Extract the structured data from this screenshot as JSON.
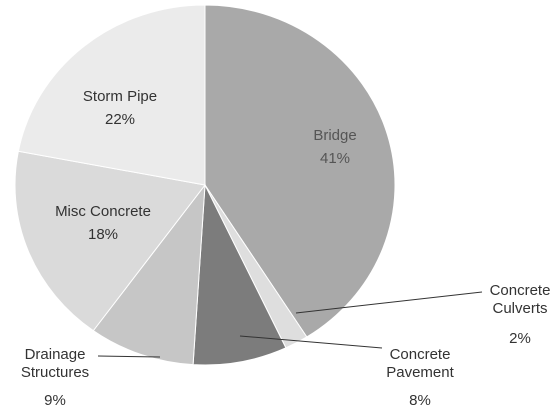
{
  "chart_data": {
    "type": "pie",
    "categories": [
      "Bridge",
      "Concrete Culverts",
      "Concrete Pavement",
      "Drainage Structures",
      "Misc Concrete",
      "Storm Pipe"
    ],
    "values": [
      41,
      2,
      8,
      9,
      18,
      22
    ],
    "value_labels": [
      "41%",
      "2%",
      "8%",
      "9%",
      "18%",
      "22%"
    ],
    "colors": [
      "#a9a9a9",
      "#dedede",
      "#7c7c7c",
      "#c6c6c6",
      "#dadada",
      "#ebebeb"
    ]
  }
}
